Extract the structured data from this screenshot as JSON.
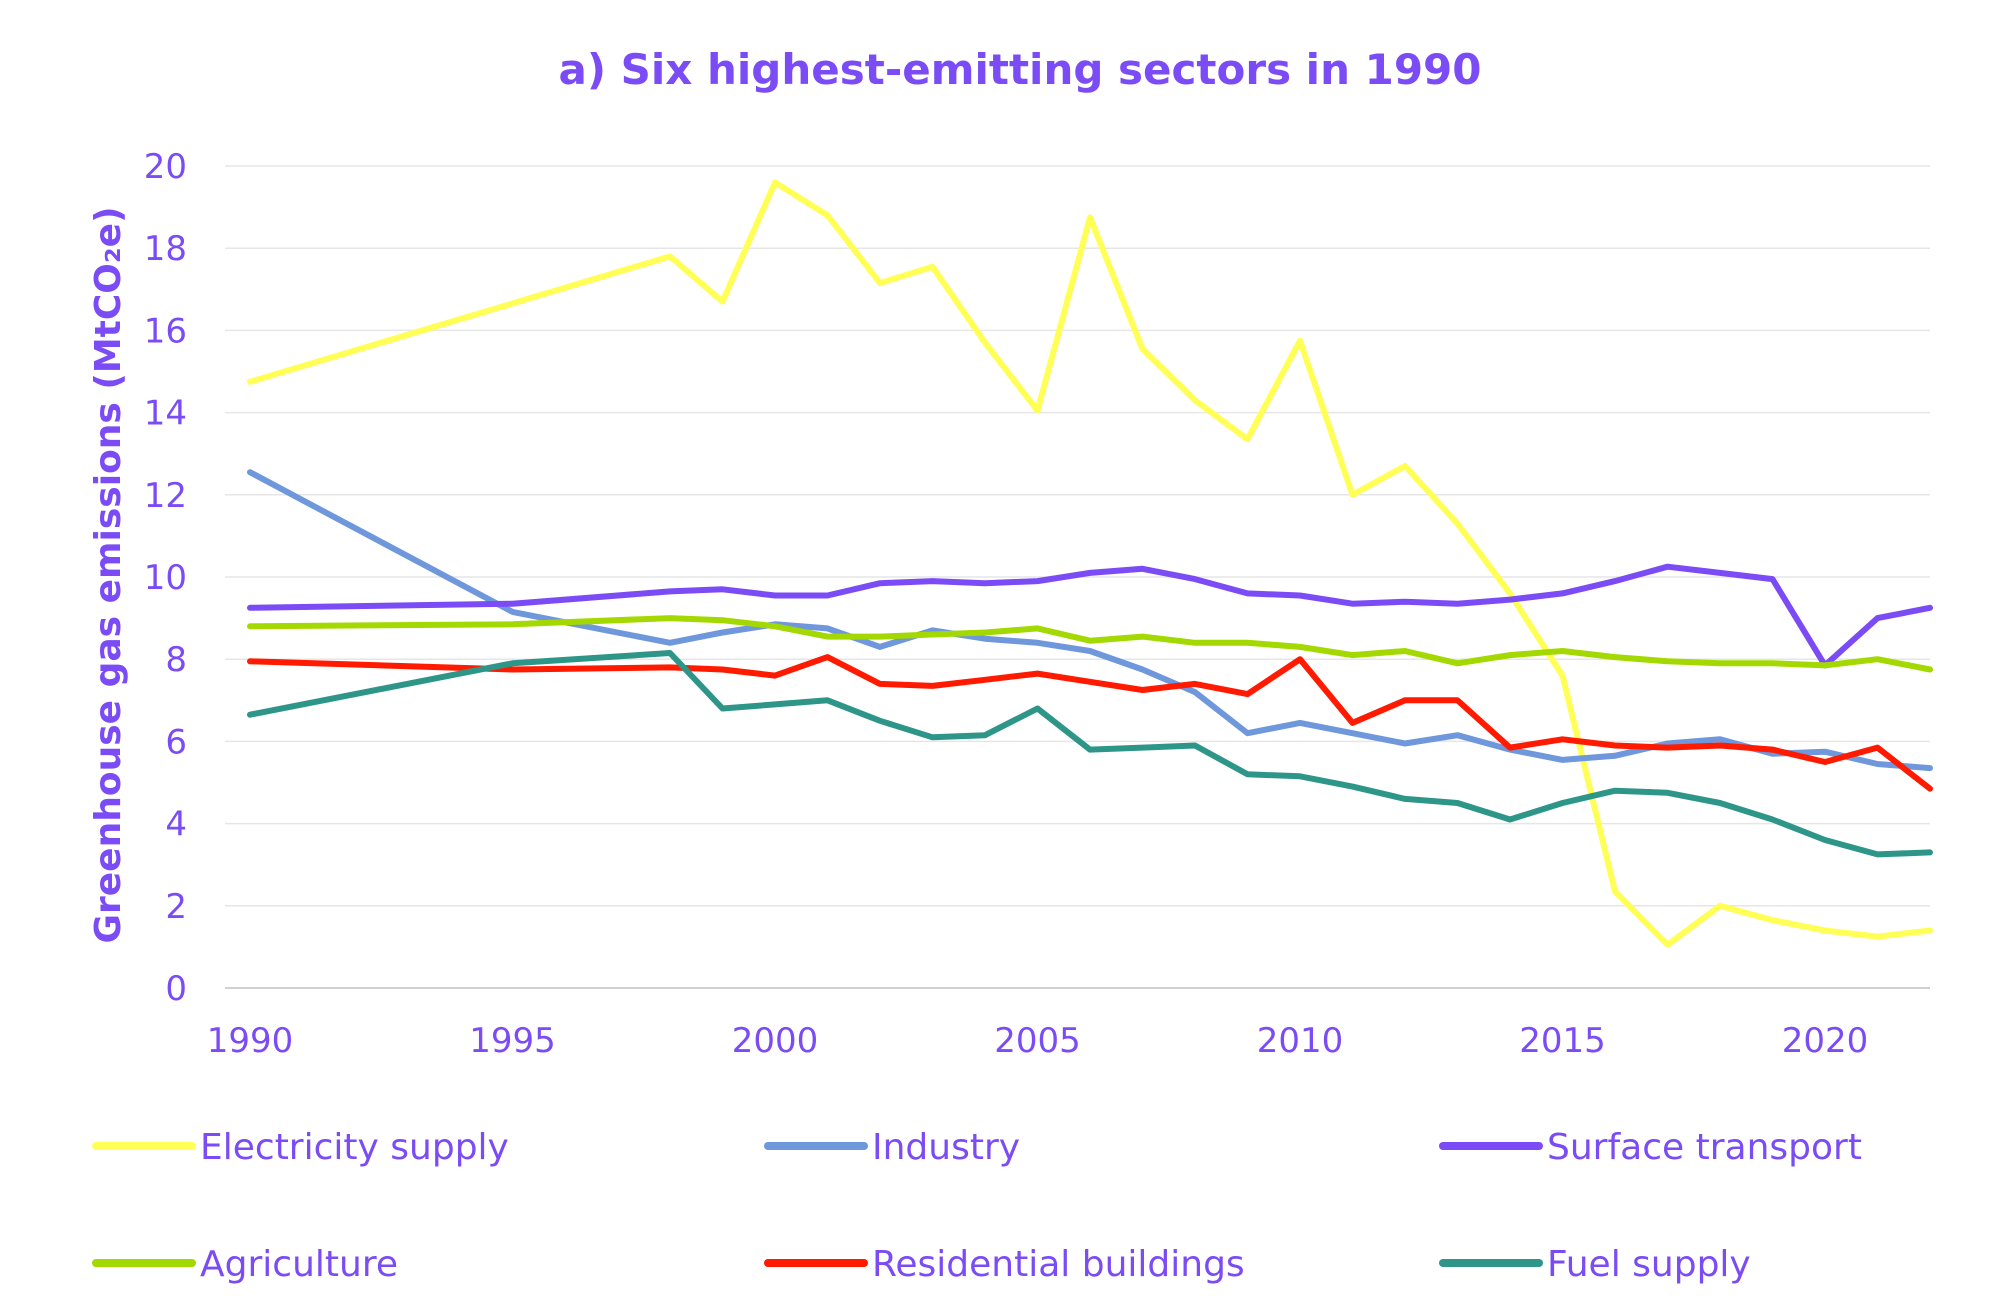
{
  "chart_data": {
    "type": "line",
    "title": "a) Six highest-emitting sectors in 1990",
    "xlabel": "",
    "ylabel": "Greenhouse gas emissions (MtCO₂e)",
    "xlim": [
      1990,
      2022
    ],
    "ylim": [
      0,
      20
    ],
    "yticks": [
      0,
      2,
      4,
      6,
      8,
      10,
      12,
      14,
      16,
      18,
      20
    ],
    "xticks": [
      1990,
      1995,
      2000,
      2005,
      2010,
      2015,
      2020
    ],
    "grid": true,
    "legend_position": "bottom",
    "series": [
      {
        "name": "Electricity supply",
        "color": "#ffff55",
        "points": [
          [
            1990,
            14.75
          ],
          [
            1998,
            17.8
          ],
          [
            1999,
            16.7
          ],
          [
            2000,
            19.6
          ],
          [
            2001,
            18.8
          ],
          [
            2002,
            17.15
          ],
          [
            2003,
            17.55
          ],
          [
            2004,
            15.7
          ],
          [
            2005,
            14.05
          ],
          [
            2006,
            18.75
          ],
          [
            2007,
            15.55
          ],
          [
            2008,
            14.3
          ],
          [
            2009,
            13.35
          ],
          [
            2010,
            15.75
          ],
          [
            2011,
            12.0
          ],
          [
            2012,
            12.7
          ],
          [
            2013,
            11.3
          ],
          [
            2014,
            9.6
          ],
          [
            2015,
            7.6
          ],
          [
            2016,
            2.35
          ],
          [
            2017,
            1.05
          ],
          [
            2018,
            2.0
          ],
          [
            2019,
            1.65
          ],
          [
            2020,
            1.4
          ],
          [
            2021,
            1.25
          ],
          [
            2022,
            1.4
          ]
        ]
      },
      {
        "name": "Industry",
        "color": "#6f97dc",
        "points": [
          [
            1990,
            12.55
          ],
          [
            1995,
            9.15
          ],
          [
            1998,
            8.4
          ],
          [
            1999,
            8.65
          ],
          [
            2000,
            8.85
          ],
          [
            2001,
            8.75
          ],
          [
            2002,
            8.3
          ],
          [
            2003,
            8.7
          ],
          [
            2004,
            8.5
          ],
          [
            2005,
            8.4
          ],
          [
            2006,
            8.2
          ],
          [
            2007,
            7.75
          ],
          [
            2008,
            7.2
          ],
          [
            2009,
            6.2
          ],
          [
            2010,
            6.45
          ],
          [
            2011,
            6.2
          ],
          [
            2012,
            5.95
          ],
          [
            2013,
            6.15
          ],
          [
            2014,
            5.8
          ],
          [
            2015,
            5.55
          ],
          [
            2016,
            5.65
          ],
          [
            2017,
            5.95
          ],
          [
            2018,
            6.05
          ],
          [
            2019,
            5.7
          ],
          [
            2020,
            5.75
          ],
          [
            2021,
            5.45
          ],
          [
            2022,
            5.35
          ]
        ]
      },
      {
        "name": "Surface transport",
        "color": "#7b4cf5",
        "points": [
          [
            1990,
            9.25
          ],
          [
            1995,
            9.35
          ],
          [
            1998,
            9.65
          ],
          [
            1999,
            9.7
          ],
          [
            2000,
            9.55
          ],
          [
            2001,
            9.55
          ],
          [
            2002,
            9.85
          ],
          [
            2003,
            9.9
          ],
          [
            2004,
            9.85
          ],
          [
            2005,
            9.9
          ],
          [
            2006,
            10.1
          ],
          [
            2007,
            10.2
          ],
          [
            2008,
            9.95
          ],
          [
            2009,
            9.6
          ],
          [
            2010,
            9.55
          ],
          [
            2011,
            9.35
          ],
          [
            2012,
            9.4
          ],
          [
            2013,
            9.35
          ],
          [
            2014,
            9.45
          ],
          [
            2015,
            9.6
          ],
          [
            2016,
            9.9
          ],
          [
            2017,
            10.25
          ],
          [
            2018,
            10.1
          ],
          [
            2019,
            9.95
          ],
          [
            2020,
            7.85
          ],
          [
            2021,
            9.0
          ],
          [
            2022,
            9.25
          ]
        ]
      },
      {
        "name": "Agriculture",
        "color": "#a3d900",
        "points": [
          [
            1990,
            8.8
          ],
          [
            1995,
            8.85
          ],
          [
            1998,
            9.0
          ],
          [
            1999,
            8.95
          ],
          [
            2000,
            8.8
          ],
          [
            2001,
            8.55
          ],
          [
            2002,
            8.55
          ],
          [
            2003,
            8.6
          ],
          [
            2004,
            8.65
          ],
          [
            2005,
            8.75
          ],
          [
            2006,
            8.45
          ],
          [
            2007,
            8.55
          ],
          [
            2008,
            8.4
          ],
          [
            2009,
            8.4
          ],
          [
            2010,
            8.3
          ],
          [
            2011,
            8.1
          ],
          [
            2012,
            8.2
          ],
          [
            2013,
            7.9
          ],
          [
            2014,
            8.1
          ],
          [
            2015,
            8.2
          ],
          [
            2016,
            8.05
          ],
          [
            2017,
            7.95
          ],
          [
            2018,
            7.9
          ],
          [
            2019,
            7.9
          ],
          [
            2020,
            7.85
          ],
          [
            2021,
            8.0
          ],
          [
            2022,
            7.75
          ]
        ]
      },
      {
        "name": "Residential buildings",
        "color": "#ff1a00",
        "points": [
          [
            1990,
            7.95
          ],
          [
            1995,
            7.75
          ],
          [
            1998,
            7.8
          ],
          [
            1999,
            7.75
          ],
          [
            2000,
            7.6
          ],
          [
            2001,
            8.05
          ],
          [
            2002,
            7.4
          ],
          [
            2003,
            7.35
          ],
          [
            2004,
            7.5
          ],
          [
            2005,
            7.65
          ],
          [
            2006,
            7.45
          ],
          [
            2007,
            7.25
          ],
          [
            2008,
            7.4
          ],
          [
            2009,
            7.15
          ],
          [
            2010,
            8.0
          ],
          [
            2011,
            6.45
          ],
          [
            2012,
            7.0
          ],
          [
            2013,
            7.0
          ],
          [
            2014,
            5.85
          ],
          [
            2015,
            6.05
          ],
          [
            2016,
            5.9
          ],
          [
            2017,
            5.85
          ],
          [
            2018,
            5.9
          ],
          [
            2019,
            5.8
          ],
          [
            2020,
            5.5
          ],
          [
            2021,
            5.85
          ],
          [
            2022,
            4.85
          ]
        ]
      },
      {
        "name": "Fuel supply",
        "color": "#2e9688",
        "points": [
          [
            1990,
            6.65
          ],
          [
            1995,
            7.9
          ],
          [
            1998,
            8.15
          ],
          [
            1999,
            6.8
          ],
          [
            2000,
            6.9
          ],
          [
            2001,
            7.0
          ],
          [
            2002,
            6.5
          ],
          [
            2003,
            6.1
          ],
          [
            2004,
            6.15
          ],
          [
            2005,
            6.8
          ],
          [
            2006,
            5.8
          ],
          [
            2007,
            5.85
          ],
          [
            2008,
            5.9
          ],
          [
            2009,
            5.2
          ],
          [
            2010,
            5.15
          ],
          [
            2011,
            4.9
          ],
          [
            2012,
            4.6
          ],
          [
            2013,
            4.5
          ],
          [
            2014,
            4.1
          ],
          [
            2015,
            4.5
          ],
          [
            2016,
            4.8
          ],
          [
            2017,
            4.75
          ],
          [
            2018,
            4.5
          ],
          [
            2019,
            4.1
          ],
          [
            2020,
            3.6
          ],
          [
            2021,
            3.25
          ],
          [
            2022,
            3.3
          ]
        ]
      }
    ]
  }
}
